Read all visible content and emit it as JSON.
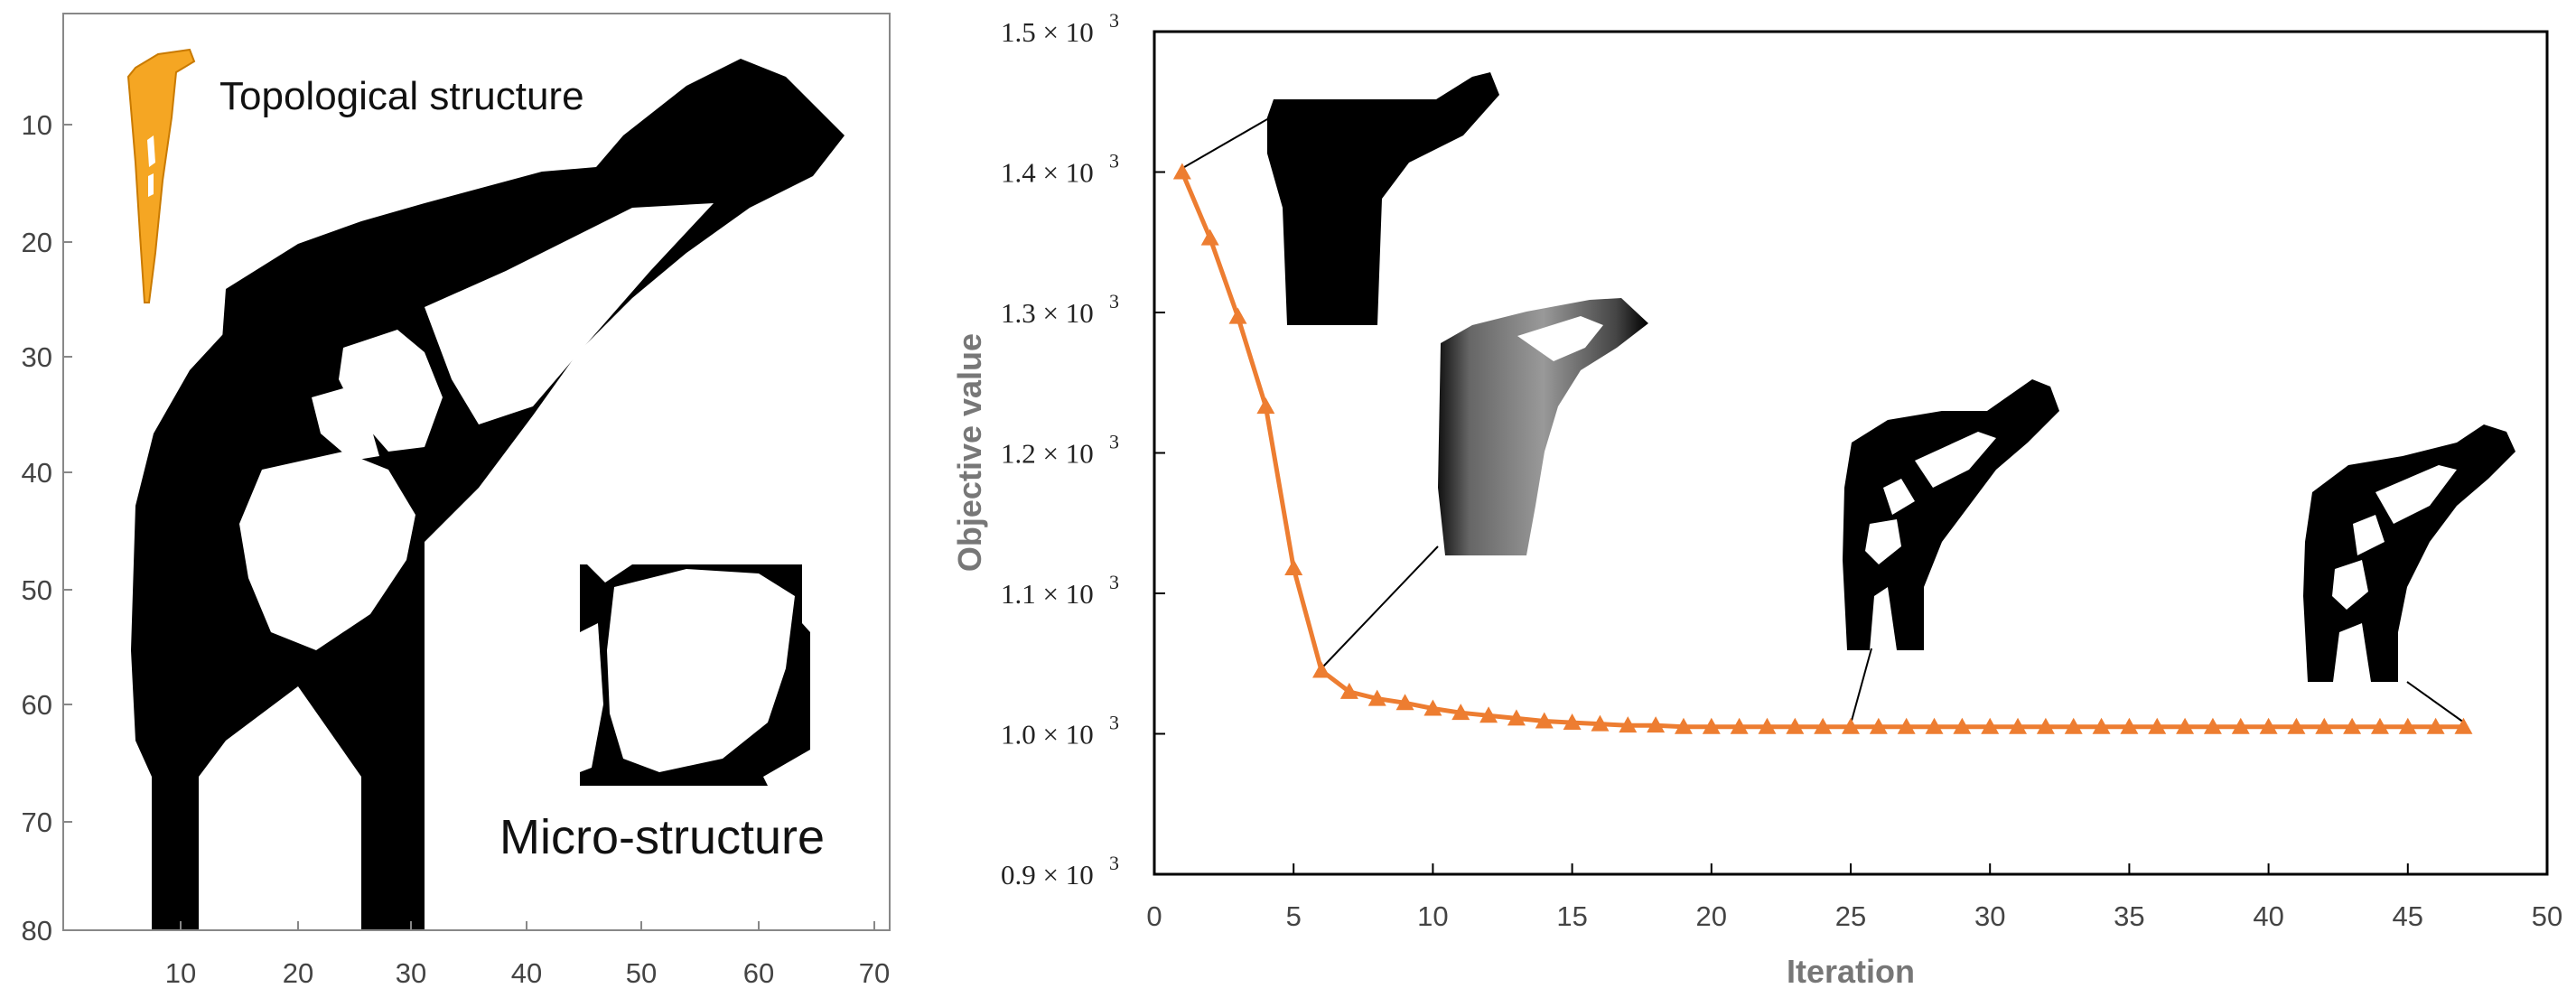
{
  "colors": {
    "line": "#ED7D31",
    "ink": "#000000",
    "implant": "#F5A623"
  },
  "left_panel": {
    "annotation_top": "Topological structure",
    "annotation_bottom": "Micro-structure",
    "x_ticks": [
      "10",
      "20",
      "30",
      "40",
      "50",
      "60",
      "70"
    ],
    "y_ticks": [
      "10",
      "20",
      "30",
      "40",
      "50",
      "60",
      "70",
      "80"
    ]
  },
  "chart_data": {
    "type": "line",
    "title": "",
    "xlabel": "Iteration",
    "ylabel": "Objective value",
    "xlim": [
      0,
      50
    ],
    "ylim": [
      900,
      1500
    ],
    "x_ticks": [
      "0",
      "5",
      "10",
      "15",
      "20",
      "25",
      "30",
      "35",
      "40",
      "45",
      "50"
    ],
    "y_ticks": [
      {
        "mantissa": "0.9",
        "value": 900
      },
      {
        "mantissa": "1.0",
        "value": 1000
      },
      {
        "mantissa": "1.1",
        "value": 1100
      },
      {
        "mantissa": "1.2",
        "value": 1200
      },
      {
        "mantissa": "1.3",
        "value": 1300
      },
      {
        "mantissa": "1.4",
        "value": 1400
      },
      {
        "mantissa": "1.5",
        "value": 1500
      }
    ],
    "y_tick_suffix": "× 10",
    "y_tick_exponent": "3",
    "grid": false,
    "series": [
      {
        "marker": "triangle",
        "x": [
          1,
          2,
          3,
          4,
          5,
          6,
          7,
          8,
          9,
          10,
          11,
          12,
          13,
          14,
          15,
          16,
          17,
          18,
          19,
          20,
          21,
          22,
          23,
          24,
          25,
          26,
          27,
          28,
          29,
          30,
          31,
          32,
          33,
          34,
          35,
          36,
          37,
          38,
          39,
          40,
          41,
          42,
          43,
          44,
          45,
          46,
          47
        ],
        "y": [
          1400,
          1353,
          1297,
          1233,
          1118,
          1045,
          1030,
          1025,
          1022,
          1018,
          1015,
          1013,
          1011,
          1009,
          1008,
          1007,
          1006,
          1006,
          1005,
          1005,
          1005,
          1005,
          1005,
          1005,
          1005,
          1005,
          1005,
          1005,
          1005,
          1005,
          1005,
          1005,
          1005,
          1005,
          1005,
          1005,
          1005,
          1005,
          1005,
          1005,
          1005,
          1005,
          1005,
          1005,
          1005,
          1005,
          1005
        ]
      }
    ]
  }
}
